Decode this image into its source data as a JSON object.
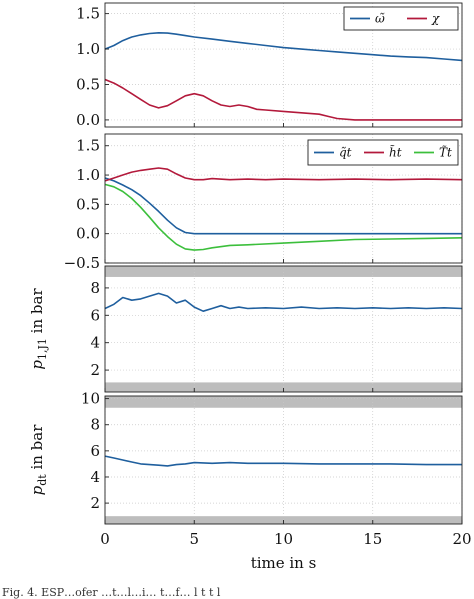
{
  "colors": {
    "blue": "#1f5f9e",
    "red": "#b3193b",
    "green": "#3cbf3c",
    "band": "#bdbdbd",
    "axis": "#222222"
  },
  "caption": "Fig. 4.   ESP…ofer    …t…l…i…        t…f…             l           t      t l",
  "chart_data": [
    {
      "type": "line",
      "grid": true,
      "legend_position": "top-right",
      "x_range": [
        0,
        20
      ],
      "ylim": [
        -0.1,
        1.65
      ],
      "y_ticks": [
        0,
        0.5,
        1,
        1.5
      ],
      "y_tick_labels": [
        "0.0",
        "0.5",
        "1.0",
        "1.5"
      ],
      "ylabel": "",
      "series": [
        {
          "name": "ω̃",
          "color": "#1f5f9e",
          "x": [
            0,
            0.5,
            1,
            1.5,
            2,
            2.5,
            3,
            3.5,
            4,
            4.5,
            5,
            6,
            7,
            8,
            9,
            10,
            11,
            12,
            13,
            14,
            15,
            16,
            17,
            18,
            19,
            20
          ],
          "y": [
            1.0,
            1.05,
            1.12,
            1.17,
            1.2,
            1.22,
            1.23,
            1.225,
            1.21,
            1.19,
            1.17,
            1.14,
            1.11,
            1.08,
            1.05,
            1.02,
            1.0,
            0.98,
            0.96,
            0.94,
            0.92,
            0.9,
            0.89,
            0.88,
            0.86,
            0.84
          ]
        },
        {
          "name": "χ",
          "color": "#b3193b",
          "x": [
            0,
            0.5,
            1,
            1.5,
            2,
            2.5,
            3,
            3.5,
            4,
            4.5,
            5,
            5.5,
            6,
            6.5,
            7,
            7.5,
            8,
            8.5,
            9,
            10,
            11,
            12,
            12.5,
            13,
            14,
            15,
            16,
            17,
            18,
            19,
            20
          ],
          "y": [
            0.57,
            0.52,
            0.45,
            0.37,
            0.29,
            0.21,
            0.17,
            0.2,
            0.27,
            0.34,
            0.37,
            0.34,
            0.27,
            0.21,
            0.19,
            0.21,
            0.19,
            0.15,
            0.14,
            0.12,
            0.1,
            0.08,
            0.05,
            0.02,
            0.0,
            0.0,
            0.0,
            0.0,
            0.0,
            0.0,
            0.0
          ]
        }
      ]
    },
    {
      "type": "line",
      "grid": true,
      "legend_position": "top-right",
      "x_range": [
        0,
        20
      ],
      "ylim": [
        -0.5,
        1.7
      ],
      "y_ticks": [
        -0.5,
        0,
        0.5,
        1,
        1.5
      ],
      "y_tick_labels": [
        "−0.5",
        "0.0",
        "0.5",
        "1.0",
        "1.5"
      ],
      "ylabel": "",
      "series": [
        {
          "name": "q̃t",
          "color": "#1f5f9e",
          "x": [
            0,
            0.5,
            1,
            1.5,
            2,
            2.5,
            3,
            3.5,
            4,
            4.5,
            5,
            6,
            8,
            10,
            12,
            14,
            16,
            18,
            20
          ],
          "y": [
            0.95,
            0.9,
            0.83,
            0.75,
            0.65,
            0.52,
            0.38,
            0.23,
            0.1,
            0.02,
            0.0,
            0.0,
            0.0,
            0.0,
            0.0,
            0.0,
            0.0,
            0.0,
            0.0
          ]
        },
        {
          "name": "h̃t",
          "color": "#b3193b",
          "x": [
            0,
            0.5,
            1,
            1.5,
            2,
            2.5,
            3,
            3.5,
            4,
            4.5,
            5,
            5.5,
            6,
            7,
            8,
            9,
            10,
            12,
            14,
            16,
            18,
            20
          ],
          "y": [
            0.9,
            0.95,
            1.0,
            1.05,
            1.08,
            1.1,
            1.12,
            1.1,
            1.02,
            0.95,
            0.92,
            0.92,
            0.94,
            0.92,
            0.93,
            0.92,
            0.93,
            0.92,
            0.93,
            0.92,
            0.93,
            0.92
          ]
        },
        {
          "name": "T̃t",
          "color": "#3cbf3c",
          "x": [
            0,
            0.5,
            1,
            1.5,
            2,
            2.5,
            3,
            3.5,
            4,
            4.5,
            5,
            5.5,
            6,
            7,
            8,
            10,
            12,
            14,
            16,
            18,
            20
          ],
          "y": [
            0.84,
            0.8,
            0.72,
            0.6,
            0.45,
            0.28,
            0.1,
            -0.05,
            -0.18,
            -0.26,
            -0.28,
            -0.27,
            -0.24,
            -0.2,
            -0.19,
            -0.16,
            -0.13,
            -0.1,
            -0.09,
            -0.08,
            -0.07
          ]
        }
      ]
    },
    {
      "type": "line",
      "grid": true,
      "x_range": [
        0,
        20
      ],
      "ylim": [
        0.4,
        9.6
      ],
      "y_ticks": [
        2,
        4,
        6,
        8
      ],
      "y_tick_labels": [
        "2",
        "4",
        "6",
        "8"
      ],
      "ylabel": "p1,J1 in bar",
      "bands": [
        [
          0.4,
          1.1
        ],
        [
          8.8,
          9.6
        ]
      ],
      "series": [
        {
          "name": "",
          "color": "#1f5f9e",
          "x": [
            0,
            0.5,
            1,
            1.5,
            2,
            2.5,
            3,
            3.5,
            4,
            4.5,
            5,
            5.5,
            6,
            6.5,
            7,
            7.5,
            8,
            9,
            10,
            11,
            12,
            13,
            14,
            15,
            16,
            17,
            18,
            19,
            20
          ],
          "y": [
            6.5,
            6.8,
            7.3,
            7.1,
            7.2,
            7.4,
            7.6,
            7.4,
            6.9,
            7.1,
            6.6,
            6.3,
            6.5,
            6.7,
            6.5,
            6.6,
            6.5,
            6.55,
            6.5,
            6.6,
            6.5,
            6.55,
            6.5,
            6.55,
            6.5,
            6.55,
            6.5,
            6.55,
            6.5
          ]
        }
      ]
    },
    {
      "type": "line",
      "grid": true,
      "x_range": [
        0,
        20
      ],
      "x_ticks": [
        0,
        5,
        10,
        15,
        20
      ],
      "xlabel": "time in s",
      "ylim": [
        0.4,
        10.2
      ],
      "y_ticks": [
        2,
        4,
        6,
        8,
        10
      ],
      "y_tick_labels": [
        "2",
        "4",
        "6",
        "8",
        "10"
      ],
      "ylabel": "pdt in bar",
      "bands": [
        [
          0.4,
          1.0
        ],
        [
          9.3,
          10.2
        ]
      ],
      "series": [
        {
          "name": "",
          "color": "#1f5f9e",
          "x": [
            0,
            0.5,
            1,
            1.5,
            2,
            2.5,
            3,
            3.5,
            4,
            4.5,
            5,
            6,
            7,
            8,
            10,
            12,
            14,
            16,
            18,
            20
          ],
          "y": [
            5.6,
            5.45,
            5.3,
            5.15,
            5.0,
            4.95,
            4.9,
            4.85,
            4.95,
            5.0,
            5.1,
            5.05,
            5.1,
            5.05,
            5.05,
            5.0,
            5.0,
            5.0,
            4.95,
            4.95
          ]
        }
      ]
    }
  ]
}
